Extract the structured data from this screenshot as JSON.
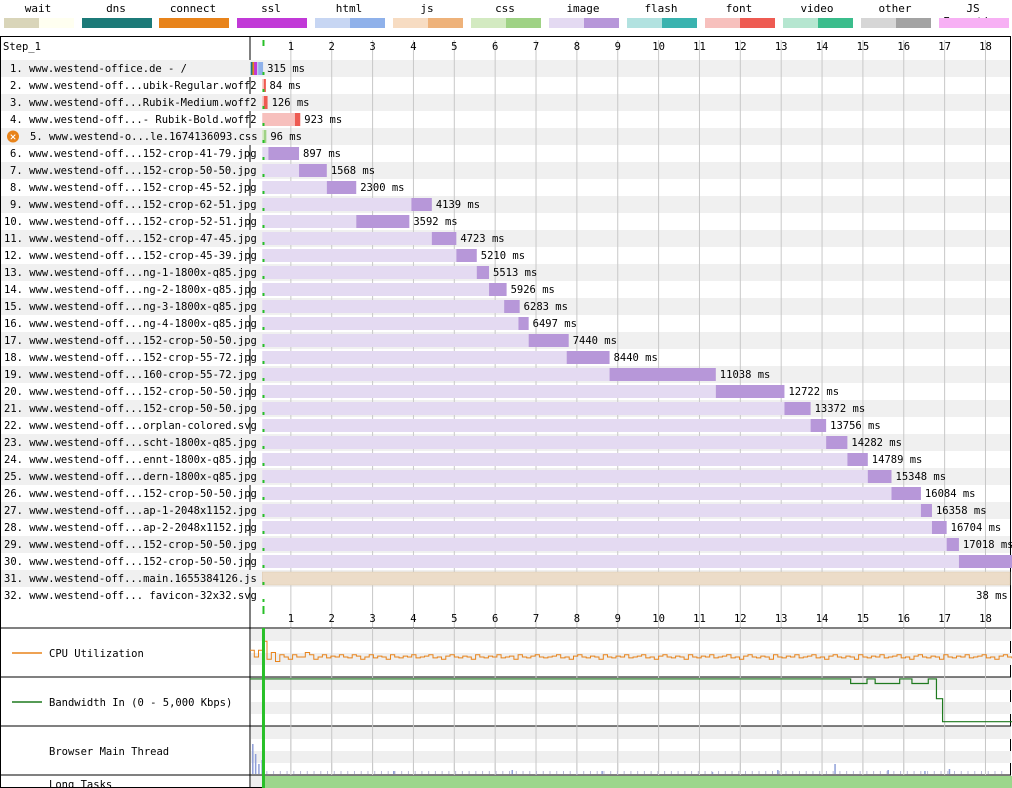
{
  "legend": [
    {
      "label": "wait",
      "c1": "#d9d5b9",
      "c2": "#fffff0"
    },
    {
      "label": "dns",
      "c1": "#1c7a78",
      "c2": "#1c7a78"
    },
    {
      "label": "connect",
      "c1": "#e8831a",
      "c2": "#e8831a"
    },
    {
      "label": "ssl",
      "c1": "#c139d7",
      "c2": "#c139d7"
    },
    {
      "label": "html",
      "c1": "#c7d6f3",
      "c2": "#8fb1ea"
    },
    {
      "label": "js",
      "c1": "#f7dcc2",
      "c2": "#eeb27a"
    },
    {
      "label": "css",
      "c1": "#d3eac1",
      "c2": "#9fd285"
    },
    {
      "label": "image",
      "c1": "#e4daf2",
      "c2": "#b797d9"
    },
    {
      "label": "flash",
      "c1": "#b2e2e0",
      "c2": "#3ab3af"
    },
    {
      "label": "font",
      "c1": "#f7c0bd",
      "c2": "#ee5b52"
    },
    {
      "label": "video",
      "c1": "#b5e6d0",
      "c2": "#3bbd8c"
    },
    {
      "label": "other",
      "c1": "#d6d6d6",
      "c2": "#a3a3a3"
    },
    {
      "label": "JS Execution",
      "c1": "#f7b0f4",
      "c2": "#f7b0f4"
    }
  ],
  "step_label": "Step_1",
  "axis": {
    "ticks": [
      "1",
      "2",
      "3",
      "4",
      "5",
      "6",
      "7",
      "8",
      "9",
      "10",
      "11",
      "12",
      "13",
      "14",
      "15",
      "16",
      "17",
      "18"
    ],
    "max_s": 18.6
  },
  "requests": [
    {
      "label": "1. www.westend-office.de - /",
      "type": "html",
      "start": 0.0,
      "ttfb": 0.2,
      "end": 0.32,
      "time": "315 ms"
    },
    {
      "label": "2. www.westend-off...ubik-Regular.woff2",
      "type": "font",
      "start": 0.3,
      "ttfb": 0.34,
      "end": 0.38,
      "time": "84 ms"
    },
    {
      "label": "3. www.westend-off...Rubik-Medium.woff2",
      "type": "font",
      "start": 0.3,
      "ttfb": 0.34,
      "end": 0.43,
      "time": "126 ms"
    },
    {
      "label": "4. www.westend-off...- Rubik-Bold.woff2",
      "type": "font",
      "start": 0.3,
      "ttfb": 1.1,
      "end": 1.23,
      "time": "923 ms"
    },
    {
      "label": "5. www.westend-o...le.1674136093.css",
      "type": "css",
      "start": 0.3,
      "ttfb": 0.34,
      "end": 0.4,
      "time": "96 ms",
      "error": true
    },
    {
      "label": "6. www.westend-off...152-crop-41-79.jpg",
      "type": "image",
      "start": 0.3,
      "ttfb": 0.45,
      "end": 1.2,
      "time": "897 ms"
    },
    {
      "label": "7. www.westend-off...152-crop-50-50.jpg",
      "type": "image",
      "start": 0.3,
      "ttfb": 1.2,
      "end": 1.88,
      "time": "1568 ms"
    },
    {
      "label": "8. www.westend-off...152-crop-45-52.jpg",
      "type": "image",
      "start": 0.3,
      "ttfb": 1.88,
      "end": 2.6,
      "time": "2300 ms"
    },
    {
      "label": "9. www.westend-off...152-crop-62-51.jpg",
      "type": "image",
      "start": 0.3,
      "ttfb": 3.95,
      "end": 4.45,
      "time": "4139 ms"
    },
    {
      "label": "10. www.westend-off...152-crop-52-51.jpg",
      "type": "image",
      "start": 0.3,
      "ttfb": 2.6,
      "end": 3.9,
      "time": "3592 ms"
    },
    {
      "label": "11. www.westend-off...152-crop-47-45.jpg",
      "type": "image",
      "start": 0.3,
      "ttfb": 4.45,
      "end": 5.05,
      "time": "4723 ms"
    },
    {
      "label": "12. www.westend-off...152-crop-45-39.jpg",
      "type": "image",
      "start": 0.3,
      "ttfb": 5.05,
      "end": 5.55,
      "time": "5210 ms"
    },
    {
      "label": "13. www.westend-off...ng-1-1800x-q85.jpg",
      "type": "image",
      "start": 0.3,
      "ttfb": 5.55,
      "end": 5.85,
      "time": "5513 ms"
    },
    {
      "label": "14. www.westend-off...ng-2-1800x-q85.jpg",
      "type": "image",
      "start": 0.3,
      "ttfb": 5.85,
      "end": 6.28,
      "time": "5926 ms"
    },
    {
      "label": "15. www.westend-off...ng-3-1800x-q85.jpg",
      "type": "image",
      "start": 0.3,
      "ttfb": 6.22,
      "end": 6.6,
      "time": "6283 ms"
    },
    {
      "label": "16. www.westend-off...ng-4-1800x-q85.jpg",
      "type": "image",
      "start": 0.3,
      "ttfb": 6.57,
      "end": 6.82,
      "time": "6497 ms"
    },
    {
      "label": "17. www.westend-off...152-crop-50-50.jpg",
      "type": "image",
      "start": 0.3,
      "ttfb": 6.82,
      "end": 7.8,
      "time": "7440 ms"
    },
    {
      "label": "18. www.westend-off...152-crop-55-72.jpg",
      "type": "image",
      "start": 0.3,
      "ttfb": 7.75,
      "end": 8.8,
      "time": "8440 ms"
    },
    {
      "label": "19. www.westend-off...160-crop-55-72.jpg",
      "type": "image",
      "start": 0.3,
      "ttfb": 8.8,
      "end": 11.4,
      "time": "11038 ms"
    },
    {
      "label": "20. www.westend-off...152-crop-50-50.jpg",
      "type": "image",
      "start": 0.3,
      "ttfb": 11.4,
      "end": 13.08,
      "time": "12722 ms"
    },
    {
      "label": "21. www.westend-off...152-crop-50-50.jpg",
      "type": "image",
      "start": 0.3,
      "ttfb": 13.08,
      "end": 13.72,
      "time": "13372 ms"
    },
    {
      "label": "22. www.westend-off...orplan-colored.svg",
      "type": "image",
      "start": 0.3,
      "ttfb": 13.72,
      "end": 14.1,
      "time": "13756 ms"
    },
    {
      "label": "23. www.westend-off...scht-1800x-q85.jpg",
      "type": "image",
      "start": 0.3,
      "ttfb": 14.1,
      "end": 14.62,
      "time": "14282 ms"
    },
    {
      "label": "24. www.westend-off...ennt-1800x-q85.jpg",
      "type": "image",
      "start": 0.3,
      "ttfb": 14.62,
      "end": 15.12,
      "time": "14789 ms"
    },
    {
      "label": "25. www.westend-off...dern-1800x-q85.jpg",
      "type": "image",
      "start": 0.3,
      "ttfb": 15.12,
      "end": 15.7,
      "time": "15348 ms"
    },
    {
      "label": "26. www.westend-off...152-crop-50-50.jpg",
      "type": "image",
      "start": 0.3,
      "ttfb": 15.7,
      "end": 16.42,
      "time": "16084 ms"
    },
    {
      "label": "27. www.westend-off...ap-1-2048x1152.jpg",
      "type": "image",
      "start": 0.3,
      "ttfb": 16.42,
      "end": 16.69,
      "time": "16358 ms"
    },
    {
      "label": "28. www.westend-off...ap-2-2048x1152.jpg",
      "type": "image",
      "start": 0.3,
      "ttfb": 16.69,
      "end": 17.05,
      "time": "16704 ms"
    },
    {
      "label": "29. www.westend-off...152-crop-50-50.jpg",
      "type": "image",
      "start": 0.3,
      "ttfb": 17.05,
      "end": 17.35,
      "time": "17018 ms"
    },
    {
      "label": "30. www.westend-off...152-crop-50-50.jpg",
      "type": "image",
      "start": 0.3,
      "ttfb": 17.35,
      "end": 18.65,
      "time": ""
    },
    {
      "label": "31. www.westend-off...main.1655384126.js",
      "type": "js_wait",
      "start": 0.3,
      "ttfb": 18.65,
      "end": 18.65,
      "time": ""
    },
    {
      "label": "32. www.westend-off... favicon-32x32.svg",
      "type": "none",
      "start": 0,
      "ttfb": 0,
      "end": 0,
      "time": "38 ms",
      "time_right": true
    }
  ],
  "lanes": {
    "cpu": "CPU Utilization",
    "bw": "Bandwidth In (0 - 5,000 Kbps)",
    "main": "Browser Main Thread",
    "long": "Long Tasks"
  },
  "markers": {
    "start_render_s": 0.33,
    "dom_complete_s": 18.75,
    "onload_s": 18.78
  },
  "cpu_util": [
    55,
    40,
    55,
    75,
    35,
    50,
    30,
    45,
    40,
    35,
    45,
    40,
    40,
    50,
    45,
    35,
    40,
    45,
    38,
    42,
    40,
    45,
    40,
    38,
    45,
    42,
    35,
    40,
    45,
    38,
    42,
    40,
    35,
    45,
    40,
    38,
    42,
    40,
    45,
    38,
    40,
    42,
    45,
    38,
    40,
    35,
    42,
    45,
    40,
    38,
    42,
    40,
    35,
    45,
    40,
    38,
    42,
    40,
    45,
    38,
    40,
    42,
    35,
    45,
    40,
    38,
    42,
    45,
    40,
    38,
    40,
    42,
    45,
    38,
    40,
    35,
    42,
    45,
    40,
    38,
    42,
    40,
    35,
    45,
    40,
    38,
    42,
    40,
    45,
    38,
    40,
    42,
    45,
    38,
    40,
    35,
    42,
    45,
    40,
    38,
    42,
    40,
    35,
    45,
    40,
    38,
    42,
    40,
    45,
    38,
    40,
    42,
    45,
    38,
    40,
    35,
    42,
    45,
    40,
    38,
    42,
    40,
    35,
    45,
    40,
    38,
    42,
    40,
    45,
    38,
    40,
    42,
    45,
    38,
    40,
    35,
    42,
    45,
    40,
    38,
    42,
    40,
    35,
    45,
    40,
    38,
    42,
    40,
    45,
    38,
    40,
    42,
    45,
    38,
    40,
    35,
    42,
    45,
    40,
    38,
    42,
    40,
    35,
    45,
    40,
    38,
    42,
    40,
    45,
    38,
    40,
    42,
    45,
    38,
    40,
    35,
    42,
    45,
    40,
    38
  ],
  "bandwidth": [
    {
      "s": 0.0,
      "v": 0.98
    },
    {
      "s": 14.0,
      "v": 0.98
    },
    {
      "s": 14.7,
      "v": 0.88
    },
    {
      "s": 15.1,
      "v": 0.98
    },
    {
      "s": 15.3,
      "v": 0.88
    },
    {
      "s": 15.9,
      "v": 0.98
    },
    {
      "s": 16.2,
      "v": 0.88
    },
    {
      "s": 16.6,
      "v": 0.98
    },
    {
      "s": 16.8,
      "v": 0.55
    },
    {
      "s": 16.95,
      "v": 0.05
    },
    {
      "s": 18.75,
      "v": 0.05
    }
  ]
}
